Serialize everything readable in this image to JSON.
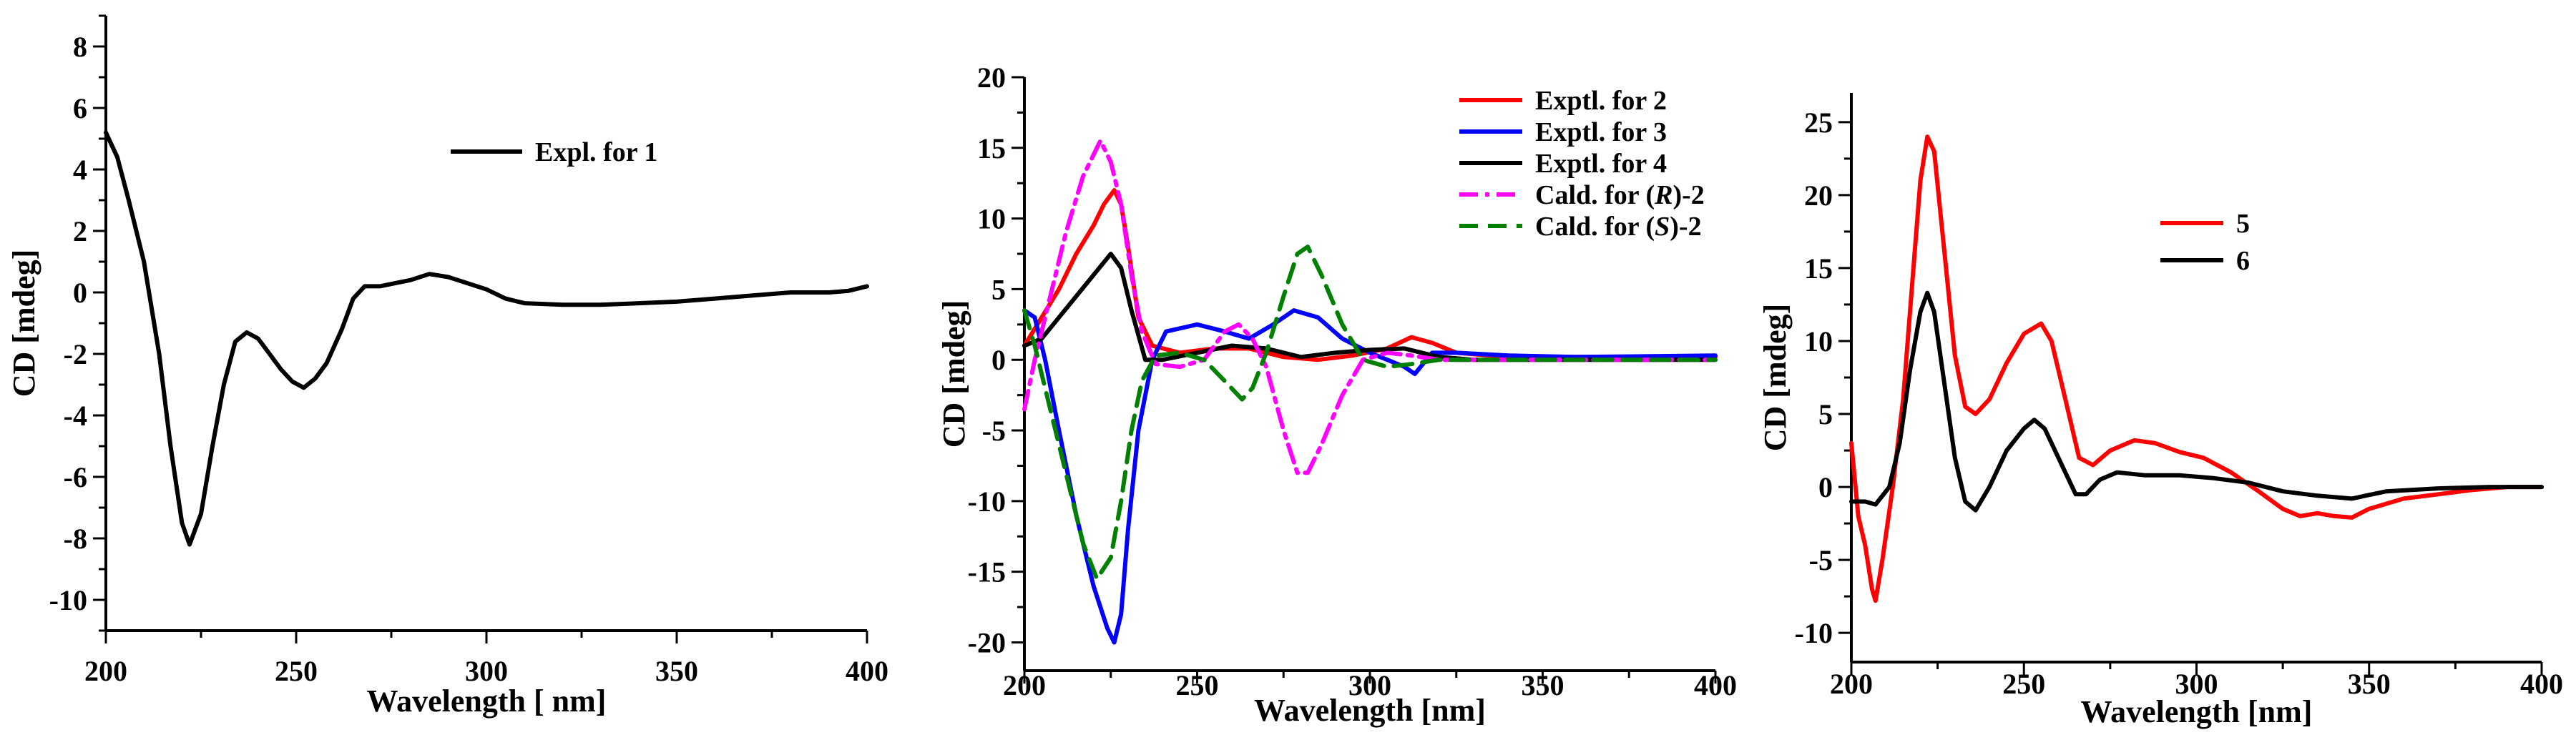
{
  "chart_data": [
    {
      "type": "line",
      "xlabel": "Wavelength [ nm]",
      "ylabel": "CD [mdeg]",
      "xlim": [
        200,
        400
      ],
      "ylim": [
        -11,
        9
      ],
      "xticks": [
        200,
        250,
        300,
        350,
        400
      ],
      "yticks": [
        -10,
        -8,
        -6,
        -4,
        -2,
        0,
        2,
        4,
        6,
        8
      ],
      "legend_position": "top-center",
      "series": [
        {
          "name": "Expl. for 1",
          "color": "#000000",
          "style": "solid",
          "points": [
            [
              200,
              5.2
            ],
            [
              203,
              4.4
            ],
            [
              206,
              3.0
            ],
            [
              210,
              1.0
            ],
            [
              214,
              -2.0
            ],
            [
              217,
              -5.0
            ],
            [
              220,
              -7.5
            ],
            [
              222,
              -8.2
            ],
            [
              225,
              -7.2
            ],
            [
              228,
              -5.0
            ],
            [
              231,
              -3.0
            ],
            [
              234,
              -1.6
            ],
            [
              237,
              -1.3
            ],
            [
              240,
              -1.5
            ],
            [
              243,
              -2.0
            ],
            [
              246,
              -2.5
            ],
            [
              249,
              -2.9
            ],
            [
              252,
              -3.1
            ],
            [
              255,
              -2.8
            ],
            [
              258,
              -2.3
            ],
            [
              262,
              -1.2
            ],
            [
              265,
              -0.2
            ],
            [
              268,
              0.2
            ],
            [
              272,
              0.2
            ],
            [
              276,
              0.3
            ],
            [
              280,
              0.4
            ],
            [
              285,
              0.6
            ],
            [
              290,
              0.5
            ],
            [
              295,
              0.3
            ],
            [
              300,
              0.1
            ],
            [
              305,
              -0.2
            ],
            [
              310,
              -0.35
            ],
            [
              320,
              -0.4
            ],
            [
              330,
              -0.4
            ],
            [
              340,
              -0.35
            ],
            [
              350,
              -0.3
            ],
            [
              360,
              -0.2
            ],
            [
              370,
              -0.1
            ],
            [
              380,
              0.0
            ],
            [
              390,
              0.0
            ],
            [
              395,
              0.05
            ],
            [
              400,
              0.2
            ]
          ]
        }
      ]
    },
    {
      "type": "line",
      "xlabel": "Wavelength [nm]",
      "ylabel": "CD [mdeg]",
      "xlim": [
        200,
        400
      ],
      "ylim": [
        -22,
        20
      ],
      "xticks": [
        200,
        250,
        300,
        350,
        400
      ],
      "yticks": [
        -20,
        -15,
        -10,
        -5,
        0,
        5,
        10,
        15,
        20
      ],
      "legend_position": "top-right",
      "series": [
        {
          "name": "Exptl. for 2",
          "label_parts": [
            "Exptl. for 2"
          ],
          "color": "#ff0000",
          "style": "solid",
          "points": [
            [
              200,
              1
            ],
            [
              205,
              3
            ],
            [
              210,
              5
            ],
            [
              215,
              7.5
            ],
            [
              220,
              9.5
            ],
            [
              223,
              11
            ],
            [
              226,
              12
            ],
            [
              228,
              11
            ],
            [
              230,
              8
            ],
            [
              233,
              3
            ],
            [
              237,
              1
            ],
            [
              245,
              0.5
            ],
            [
              255,
              0.8
            ],
            [
              265,
              0.8
            ],
            [
              275,
              0.2
            ],
            [
              285,
              0
            ],
            [
              295,
              0.3
            ],
            [
              305,
              0.8
            ],
            [
              312,
              1.6
            ],
            [
              318,
              1.2
            ],
            [
              325,
              0.5
            ],
            [
              340,
              0.2
            ],
            [
              360,
              0.2
            ],
            [
              400,
              0.2
            ]
          ]
        },
        {
          "name": "Exptl. for 3",
          "label_parts": [
            "Exptl. for 3"
          ],
          "color": "#0000ff",
          "style": "solid",
          "points": [
            [
              200,
              3.5
            ],
            [
              203,
              3
            ],
            [
              206,
              0
            ],
            [
              210,
              -5
            ],
            [
              215,
              -11
            ],
            [
              220,
              -16
            ],
            [
              224,
              -19
            ],
            [
              226,
              -20
            ],
            [
              228,
              -18
            ],
            [
              230,
              -12
            ],
            [
              233,
              -5
            ],
            [
              237,
              0
            ],
            [
              241,
              2
            ],
            [
              250,
              2.5
            ],
            [
              258,
              2
            ],
            [
              265,
              1.5
            ],
            [
              272,
              2.5
            ],
            [
              278,
              3.5
            ],
            [
              285,
              3
            ],
            [
              292,
              1.5
            ],
            [
              300,
              0.5
            ],
            [
              305,
              0
            ],
            [
              310,
              -0.5
            ],
            [
              313,
              -1
            ],
            [
              318,
              0.5
            ],
            [
              325,
              0.5
            ],
            [
              340,
              0.3
            ],
            [
              360,
              0.2
            ],
            [
              400,
              0.3
            ]
          ]
        },
        {
          "name": "Exptl. for 4",
          "label_parts": [
            "Exptl. for 4"
          ],
          "color": "#000000",
          "style": "solid",
          "points": [
            [
              200,
              1
            ],
            [
              205,
              1.5
            ],
            [
              210,
              3
            ],
            [
              215,
              4.5
            ],
            [
              220,
              6
            ],
            [
              225,
              7.5
            ],
            [
              228,
              6.5
            ],
            [
              231,
              3.5
            ],
            [
              235,
              0
            ],
            [
              240,
              0
            ],
            [
              250,
              0.5
            ],
            [
              260,
              1
            ],
            [
              270,
              0.8
            ],
            [
              280,
              0.2
            ],
            [
              290,
              0.5
            ],
            [
              300,
              0.7
            ],
            [
              310,
              0.8
            ],
            [
              320,
              0.2
            ],
            [
              330,
              0
            ],
            [
              350,
              0
            ],
            [
              400,
              0
            ]
          ]
        },
        {
          "name": "Cald. for (R)-2",
          "label_parts": [
            "Cald. for (",
            "R",
            ")-2"
          ],
          "color": "#ff00ff",
          "style": "dashdot",
          "points": [
            [
              200,
              -3.5
            ],
            [
              203,
              0
            ],
            [
              207,
              4
            ],
            [
              212,
              9
            ],
            [
              217,
              13
            ],
            [
              222,
              15.5
            ],
            [
              225,
              14
            ],
            [
              228,
              11
            ],
            [
              231,
              6
            ],
            [
              234,
              2
            ],
            [
              238,
              -0.3
            ],
            [
              245,
              -0.5
            ],
            [
              252,
              0
            ],
            [
              258,
              2
            ],
            [
              262,
              2.5
            ],
            [
              266,
              1.5
            ],
            [
              270,
              -0.5
            ],
            [
              275,
              -5
            ],
            [
              279,
              -8
            ],
            [
              282,
              -8
            ],
            [
              286,
              -6
            ],
            [
              292,
              -2.5
            ],
            [
              298,
              0
            ],
            [
              305,
              0.5
            ],
            [
              312,
              0.3
            ],
            [
              320,
              0
            ],
            [
              400,
              0
            ]
          ]
        },
        {
          "name": "Cald. for (S)-2",
          "label_parts": [
            "Cald. for (",
            "S",
            ")-2"
          ],
          "color": "#008000",
          "style": "dash",
          "points": [
            [
              200,
              3.5
            ],
            [
              203,
              1
            ],
            [
              207,
              -3
            ],
            [
              212,
              -8
            ],
            [
              217,
              -13
            ],
            [
              221,
              -15.5
            ],
            [
              225,
              -14
            ],
            [
              228,
              -10
            ],
            [
              231,
              -5
            ],
            [
              234,
              -1.5
            ],
            [
              238,
              0.3
            ],
            [
              245,
              0.5
            ],
            [
              252,
              0
            ],
            [
              258,
              -1.5
            ],
            [
              263,
              -2.8
            ],
            [
              266,
              -2
            ],
            [
              270,
              0.5
            ],
            [
              275,
              4.5
            ],
            [
              279,
              7.5
            ],
            [
              282,
              8
            ],
            [
              286,
              6
            ],
            [
              292,
              2.5
            ],
            [
              298,
              0
            ],
            [
              305,
              -0.5
            ],
            [
              312,
              -0.3
            ],
            [
              320,
              0
            ],
            [
              400,
              0
            ]
          ]
        }
      ]
    },
    {
      "type": "line",
      "xlabel": "Wavelength [nm]",
      "ylabel": "CD [mdeg]",
      "xlim": [
        200,
        400
      ],
      "ylim": [
        -12,
        27
      ],
      "xticks": [
        200,
        250,
        300,
        350,
        400
      ],
      "yticks": [
        -10,
        -5,
        0,
        5,
        10,
        15,
        20,
        25
      ],
      "legend_position": "top-right",
      "series": [
        {
          "name": "5",
          "color": "#ff0000",
          "style": "solid",
          "points": [
            [
              200,
              3
            ],
            [
              202,
              -2
            ],
            [
              204,
              -4
            ],
            [
              206,
              -7
            ],
            [
              207,
              -7.8
            ],
            [
              209,
              -5
            ],
            [
              212,
              0
            ],
            [
              215,
              6
            ],
            [
              218,
              15
            ],
            [
              220,
              21
            ],
            [
              222,
              24
            ],
            [
              224,
              23
            ],
            [
              227,
              16
            ],
            [
              230,
              9
            ],
            [
              233,
              5.5
            ],
            [
              236,
              5
            ],
            [
              240,
              6
            ],
            [
              245,
              8.5
            ],
            [
              250,
              10.5
            ],
            [
              255,
              11.2
            ],
            [
              258,
              10
            ],
            [
              262,
              6
            ],
            [
              266,
              2
            ],
            [
              270,
              1.5
            ],
            [
              275,
              2.5
            ],
            [
              282,
              3.2
            ],
            [
              288,
              3
            ],
            [
              295,
              2.4
            ],
            [
              302,
              2
            ],
            [
              310,
              1
            ],
            [
              318,
              -0.3
            ],
            [
              325,
              -1.5
            ],
            [
              330,
              -2
            ],
            [
              335,
              -1.8
            ],
            [
              340,
              -2
            ],
            [
              345,
              -2.1
            ],
            [
              350,
              -1.5
            ],
            [
              360,
              -0.8
            ],
            [
              370,
              -0.5
            ],
            [
              380,
              -0.2
            ],
            [
              390,
              0
            ],
            [
              400,
              0
            ]
          ]
        },
        {
          "name": "6",
          "color": "#000000",
          "style": "solid",
          "points": [
            [
              200,
              -1
            ],
            [
              204,
              -1
            ],
            [
              207,
              -1.2
            ],
            [
              211,
              0
            ],
            [
              214,
              3
            ],
            [
              217,
              8
            ],
            [
              220,
              12
            ],
            [
              222,
              13.3
            ],
            [
              224,
              12
            ],
            [
              227,
              7
            ],
            [
              230,
              2
            ],
            [
              233,
              -1
            ],
            [
              236,
              -1.6
            ],
            [
              240,
              0
            ],
            [
              245,
              2.5
            ],
            [
              250,
              4
            ],
            [
              253,
              4.6
            ],
            [
              256,
              4
            ],
            [
              260,
              2
            ],
            [
              265,
              -0.5
            ],
            [
              268,
              -0.5
            ],
            [
              272,
              0.5
            ],
            [
              277,
              1
            ],
            [
              285,
              0.8
            ],
            [
              295,
              0.8
            ],
            [
              305,
              0.6
            ],
            [
              315,
              0.3
            ],
            [
              325,
              -0.3
            ],
            [
              335,
              -0.6
            ],
            [
              345,
              -0.8
            ],
            [
              355,
              -0.3
            ],
            [
              370,
              -0.1
            ],
            [
              385,
              0
            ],
            [
              400,
              0
            ]
          ]
        }
      ]
    }
  ]
}
